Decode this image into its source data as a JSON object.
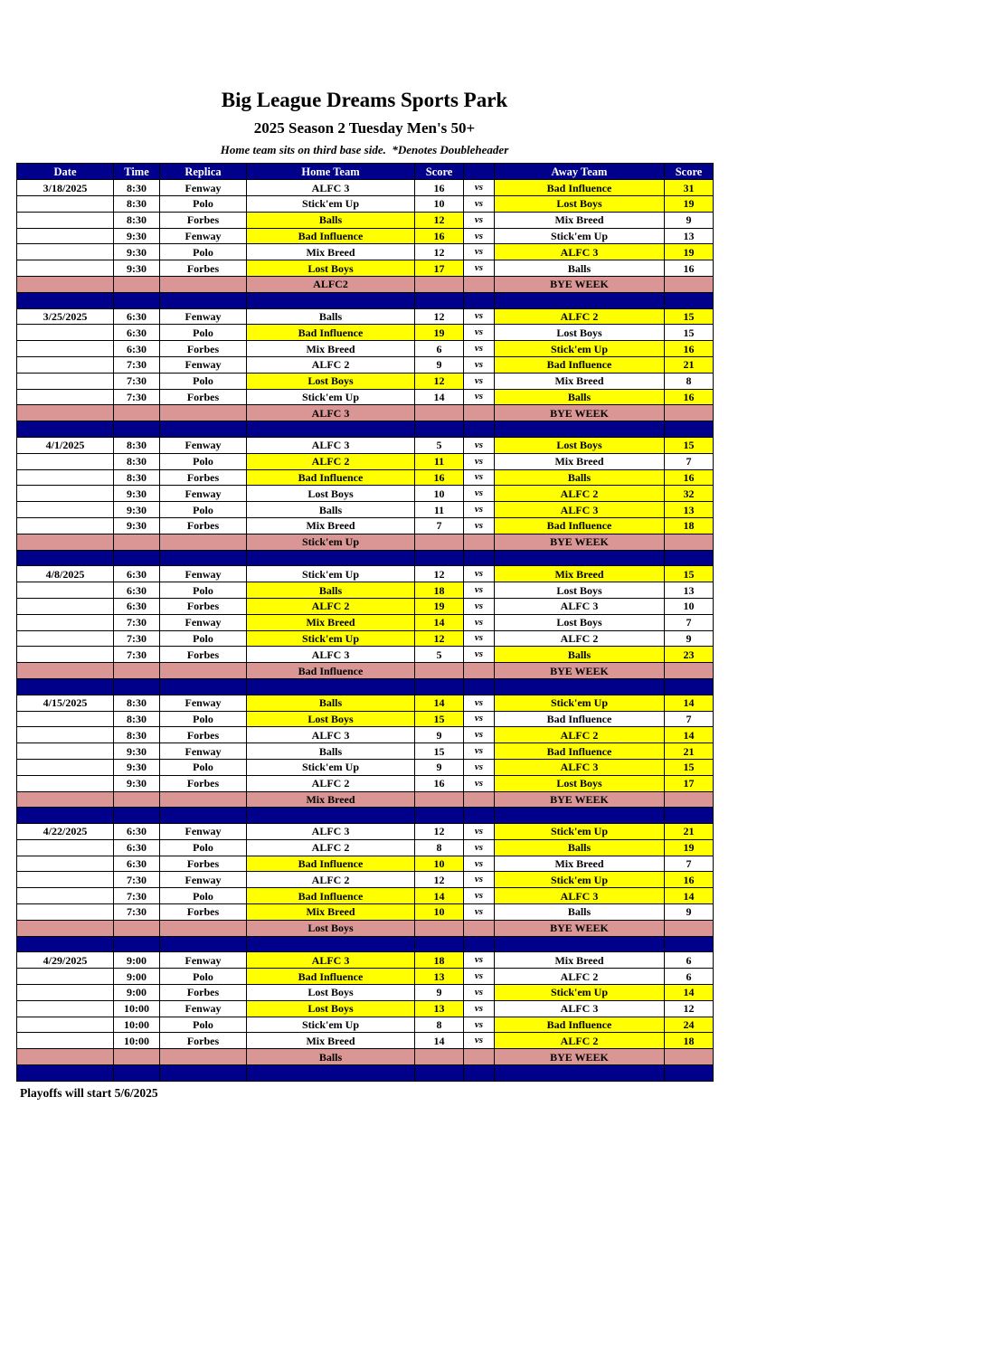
{
  "page": {
    "title": "Big League Dreams Sports Park",
    "subtitle": "2025 Season 2 Tuesday Men's 50+",
    "note": "Home team sits on third base side.  *Denotes Doubleheader",
    "footer": "Playoffs will start 5/6/2025"
  },
  "colors": {
    "navy": "#00008B",
    "highlight_yellow": "#FFFF00",
    "bye_rose": "#D99694",
    "header_text": "#FFFFFF"
  },
  "table": {
    "columns": [
      "Date",
      "Time",
      "Replica",
      "Home Team",
      "Score",
      "",
      "Away Team",
      "Score"
    ],
    "vs_label": "vs",
    "bye_label": "BYE WEEK",
    "weeks": [
      {
        "date": "3/18/2025",
        "bye_team": "ALFC2",
        "games": [
          {
            "time": "8:30",
            "replica": "Fenway",
            "home": "ALFC 3",
            "home_score": "16",
            "away": "Bad Influence",
            "away_score": "31",
            "home_hl": false,
            "away_hl": true
          },
          {
            "time": "8:30",
            "replica": "Polo",
            "home": "Stick'em Up",
            "home_score": "10",
            "away": "Lost Boys",
            "away_score": "19",
            "home_hl": false,
            "away_hl": true
          },
          {
            "time": "8:30",
            "replica": "Forbes",
            "home": "Balls",
            "home_score": "12",
            "away": "Mix Breed",
            "away_score": "9",
            "home_hl": true,
            "away_hl": false
          },
          {
            "time": "9:30",
            "replica": "Fenway",
            "home": "Bad Influence",
            "home_score": "16",
            "away": "Stick'em Up",
            "away_score": "13",
            "home_hl": true,
            "away_hl": false
          },
          {
            "time": "9:30",
            "replica": "Polo",
            "home": "Mix Breed",
            "home_score": "12",
            "away": "ALFC 3",
            "away_score": "19",
            "home_hl": false,
            "away_hl": true
          },
          {
            "time": "9:30",
            "replica": "Forbes",
            "home": "Lost Boys",
            "home_score": "17",
            "away": "Balls",
            "away_score": "16",
            "home_hl": true,
            "away_hl": false
          }
        ]
      },
      {
        "date": "3/25/2025",
        "bye_team": "ALFC 3",
        "games": [
          {
            "time": "6:30",
            "replica": "Fenway",
            "home": "Balls",
            "home_score": "12",
            "away": "ALFC 2",
            "away_score": "15",
            "home_hl": false,
            "away_hl": true
          },
          {
            "time": "6:30",
            "replica": "Polo",
            "home": "Bad Influence",
            "home_score": "19",
            "away": "Lost Boys",
            "away_score": "15",
            "home_hl": true,
            "away_hl": false
          },
          {
            "time": "6:30",
            "replica": "Forbes",
            "home": "Mix Breed",
            "home_score": "6",
            "away": "Stick'em Up",
            "away_score": "16",
            "home_hl": false,
            "away_hl": true
          },
          {
            "time": "7:30",
            "replica": "Fenway",
            "home": "ALFC 2",
            "home_score": "9",
            "away": "Bad Influence",
            "away_score": "21",
            "home_hl": false,
            "away_hl": true
          },
          {
            "time": "7:30",
            "replica": "Polo",
            "home": "Lost Boys",
            "home_score": "12",
            "away": "Mix Breed",
            "away_score": "8",
            "home_hl": true,
            "away_hl": false
          },
          {
            "time": "7:30",
            "replica": "Forbes",
            "home": "Stick'em Up",
            "home_score": "14",
            "away": "Balls",
            "away_score": "16",
            "home_hl": false,
            "away_hl": true
          }
        ]
      },
      {
        "date": "4/1/2025",
        "bye_team": "Stick'em Up",
        "games": [
          {
            "time": "8:30",
            "replica": "Fenway",
            "home": "ALFC 3",
            "home_score": "5",
            "away": "Lost Boys",
            "away_score": "15",
            "home_hl": false,
            "away_hl": true
          },
          {
            "time": "8:30",
            "replica": "Polo",
            "home": "ALFC 2",
            "home_score": "11",
            "away": "Mix Breed",
            "away_score": "7",
            "home_hl": true,
            "away_hl": false
          },
          {
            "time": "8:30",
            "replica": "Forbes",
            "home": "Bad Influence",
            "home_score": "16",
            "away": "Balls",
            "away_score": "16",
            "home_hl": true,
            "away_hl": true
          },
          {
            "time": "9:30",
            "replica": "Fenway",
            "home": "Lost Boys",
            "home_score": "10",
            "away": "ALFC 2",
            "away_score": "32",
            "home_hl": false,
            "away_hl": true
          },
          {
            "time": "9:30",
            "replica": "Polo",
            "home": "Balls",
            "home_score": "11",
            "away": "ALFC 3",
            "away_score": "13",
            "home_hl": false,
            "away_hl": true
          },
          {
            "time": "9:30",
            "replica": "Forbes",
            "home": "Mix Breed",
            "home_score": "7",
            "away": "Bad Influence",
            "away_score": "18",
            "home_hl": false,
            "away_hl": true
          }
        ]
      },
      {
        "date": "4/8/2025",
        "bye_team": "Bad Influence",
        "games": [
          {
            "time": "6:30",
            "replica": "Fenway",
            "home": "Stick'em Up",
            "home_score": "12",
            "away": "Mix Breed",
            "away_score": "15",
            "home_hl": false,
            "away_hl": true
          },
          {
            "time": "6:30",
            "replica": "Polo",
            "home": "Balls",
            "home_score": "18",
            "away": "Lost Boys",
            "away_score": "13",
            "home_hl": true,
            "away_hl": false
          },
          {
            "time": "6:30",
            "replica": "Forbes",
            "home": "ALFC 2",
            "home_score": "19",
            "away": "ALFC 3",
            "away_score": "10",
            "home_hl": true,
            "away_hl": false
          },
          {
            "time": "7:30",
            "replica": "Fenway",
            "home": "Mix Breed",
            "home_score": "14",
            "away": "Lost Boys",
            "away_score": "7",
            "home_hl": true,
            "away_hl": false
          },
          {
            "time": "7:30",
            "replica": "Polo",
            "home": "Stick'em Up",
            "home_score": "12",
            "away": "ALFC 2",
            "away_score": "9",
            "home_hl": true,
            "away_hl": false
          },
          {
            "time": "7:30",
            "replica": "Forbes",
            "home": "ALFC 3",
            "home_score": "5",
            "away": "Balls",
            "away_score": "23",
            "home_hl": false,
            "away_hl": true
          }
        ]
      },
      {
        "date": "4/15/2025",
        "bye_team": "Mix Breed",
        "games": [
          {
            "time": "8:30",
            "replica": "Fenway",
            "home": "Balls",
            "home_score": "14",
            "away": "Stick'em Up",
            "away_score": "14",
            "home_hl": true,
            "away_hl": true
          },
          {
            "time": "8:30",
            "replica": "Polo",
            "home": "Lost Boys",
            "home_score": "15",
            "away": "Bad Influence",
            "away_score": "7",
            "home_hl": true,
            "away_hl": false
          },
          {
            "time": "8:30",
            "replica": "Forbes",
            "home": "ALFC 3",
            "home_score": "9",
            "away": "ALFC 2",
            "away_score": "14",
            "home_hl": false,
            "away_hl": true
          },
          {
            "time": "9:30",
            "replica": "Fenway",
            "home": "Balls",
            "home_score": "15",
            "away": "Bad Influence",
            "away_score": "21",
            "home_hl": false,
            "away_hl": true
          },
          {
            "time": "9:30",
            "replica": "Polo",
            "home": "Stick'em Up",
            "home_score": "9",
            "away": "ALFC 3",
            "away_score": "15",
            "home_hl": false,
            "away_hl": true
          },
          {
            "time": "9:30",
            "replica": "Forbes",
            "home": "ALFC 2",
            "home_score": "16",
            "away": "Lost Boys",
            "away_score": "17",
            "home_hl": false,
            "away_hl": true
          }
        ]
      },
      {
        "date": "4/22/2025",
        "bye_team": "Lost Boys",
        "games": [
          {
            "time": "6:30",
            "replica": "Fenway",
            "home": "ALFC 3",
            "home_score": "12",
            "away": "Stick'em Up",
            "away_score": "21",
            "home_hl": false,
            "away_hl": true
          },
          {
            "time": "6:30",
            "replica": "Polo",
            "home": "ALFC 2",
            "home_score": "8",
            "away": "Balls",
            "away_score": "19",
            "home_hl": false,
            "away_hl": true
          },
          {
            "time": "6:30",
            "replica": "Forbes",
            "home": "Bad Influence",
            "home_score": "10",
            "away": "Mix Breed",
            "away_score": "7",
            "home_hl": true,
            "away_hl": false
          },
          {
            "time": "7:30",
            "replica": "Fenway",
            "home": "ALFC 2",
            "home_score": "12",
            "away": "Stick'em Up",
            "away_score": "16",
            "home_hl": false,
            "away_hl": true
          },
          {
            "time": "7:30",
            "replica": "Polo",
            "home": "Bad Influence",
            "home_score": "14",
            "away": "ALFC 3",
            "away_score": "14",
            "home_hl": true,
            "away_hl": true
          },
          {
            "time": "7:30",
            "replica": "Forbes",
            "home": "Mix Breed",
            "home_score": "10",
            "away": "Balls",
            "away_score": "9",
            "home_hl": true,
            "away_hl": false
          }
        ]
      },
      {
        "date": "4/29/2025",
        "bye_team": "Balls",
        "games": [
          {
            "time": "9:00",
            "replica": "Fenway",
            "home": "ALFC 3",
            "home_score": "18",
            "away": "Mix Breed",
            "away_score": "6",
            "home_hl": true,
            "away_hl": false
          },
          {
            "time": "9:00",
            "replica": "Polo",
            "home": "Bad Influence",
            "home_score": "13",
            "away": "ALFC 2",
            "away_score": "6",
            "home_hl": true,
            "away_hl": false
          },
          {
            "time": "9:00",
            "replica": "Forbes",
            "home": "Lost Boys",
            "home_score": "9",
            "away": "Stick'em Up",
            "away_score": "14",
            "home_hl": false,
            "away_hl": true
          },
          {
            "time": "10:00",
            "replica": "Fenway",
            "home": "Lost Boys",
            "home_score": "13",
            "away": "ALFC 3",
            "away_score": "12",
            "home_hl": true,
            "away_hl": false
          },
          {
            "time": "10:00",
            "replica": "Polo",
            "home": "Stick'em Up",
            "home_score": "8",
            "away": "Bad Influence",
            "away_score": "24",
            "home_hl": false,
            "away_hl": true
          },
          {
            "time": "10:00",
            "replica": "Forbes",
            "home": "Mix Breed",
            "home_score": "14",
            "away": "ALFC 2",
            "away_score": "18",
            "home_hl": false,
            "away_hl": true
          }
        ]
      }
    ]
  }
}
